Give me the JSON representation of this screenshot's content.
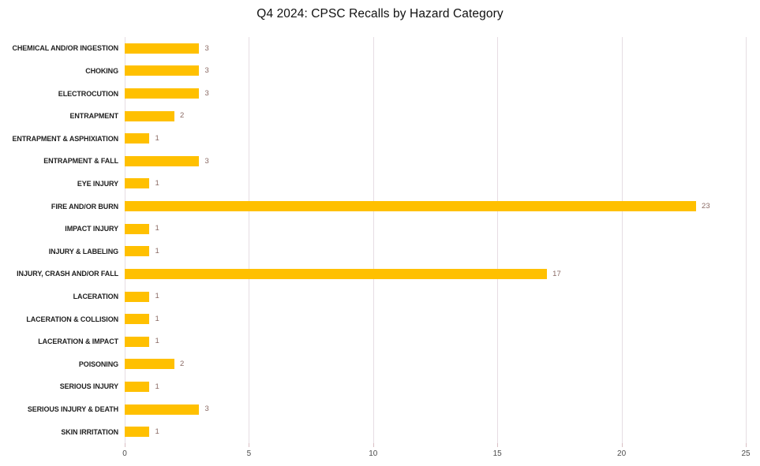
{
  "chart_data": {
    "type": "bar",
    "orientation": "horizontal",
    "title": "Q4 2024: CPSC Recalls by Hazard Category",
    "categories": [
      "CHEMICAL AND/OR INGESTION",
      "CHOKING",
      "ELECTROCUTION",
      "ENTRAPMENT",
      "ENTRAPMENT & ASPHIXIATION",
      "ENTRAPMENT & FALL",
      "EYE INJURY",
      "FIRE AND/OR BURN",
      "IMPACT INJURY",
      "INJURY & LABELING",
      "INJURY, CRASH AND/OR FALL",
      "LACERATION",
      "LACERATION & COLLISION",
      "LACERATION & IMPACT",
      "POISONING",
      "SERIOUS INJURY",
      "SERIOUS INJURY & DEATH",
      "SKIN IRRITATION"
    ],
    "values": [
      3,
      3,
      3,
      2,
      1,
      3,
      1,
      23,
      1,
      1,
      17,
      1,
      1,
      1,
      2,
      1,
      3,
      1
    ],
    "xlabel": "",
    "ylabel": "",
    "xlim": [
      0,
      25
    ],
    "x_ticks": [
      0,
      5,
      10,
      15,
      20,
      25
    ],
    "grid": "vertical-gridlines-at-ticks",
    "legend_position": "none",
    "data_labels": true,
    "colors": {
      "bar": "#FFC000",
      "value_label": "#8a6a64",
      "category_label": "#1f1f1f",
      "axis_tick_label": "#4d4d4d",
      "gridline": "#e6dde3",
      "tick_mark": "#d9bfc4",
      "title": "#111111",
      "background": "#ffffff"
    }
  }
}
